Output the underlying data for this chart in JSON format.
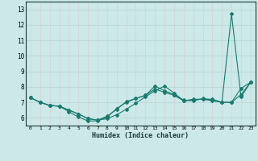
{
  "title": "",
  "xlabel": "Humidex (Indice chaleur)",
  "ylabel": "",
  "background_color": "#cce8e8",
  "grid_color": "#e8f8f8",
  "line_color": "#1a7a6e",
  "xlim": [
    -0.5,
    23.5
  ],
  "ylim": [
    5.5,
    13.5
  ],
  "yticks": [
    6,
    7,
    8,
    9,
    10,
    11,
    12,
    13
  ],
  "xtick_labels": [
    "0",
    "1",
    "2",
    "3",
    "4",
    "5",
    "6",
    "7",
    "8",
    "9",
    "10",
    "11",
    "12",
    "13",
    "14",
    "15",
    "16",
    "17",
    "18",
    "19",
    "20",
    "21",
    "22",
    "23"
  ],
  "series": [
    [
      7.3,
      7.0,
      6.8,
      6.75,
      6.5,
      6.25,
      5.95,
      5.85,
      5.95,
      6.2,
      6.55,
      6.95,
      7.35,
      7.75,
      8.05,
      7.6,
      7.1,
      7.15,
      7.2,
      7.2,
      7.0,
      7.0,
      7.5,
      8.3
    ],
    [
      7.3,
      7.0,
      6.8,
      6.75,
      6.5,
      6.25,
      5.95,
      5.85,
      6.1,
      6.55,
      7.05,
      7.25,
      7.45,
      8.05,
      7.75,
      7.5,
      7.15,
      7.1,
      7.25,
      7.15,
      7.0,
      7.0,
      7.9,
      8.3
    ],
    [
      7.3,
      7.0,
      6.8,
      6.75,
      6.4,
      6.05,
      5.8,
      5.8,
      6.05,
      6.6,
      7.0,
      7.25,
      7.45,
      7.85,
      7.65,
      7.45,
      7.1,
      7.2,
      7.2,
      7.1,
      7.0,
      12.7,
      7.35,
      8.3
    ]
  ]
}
